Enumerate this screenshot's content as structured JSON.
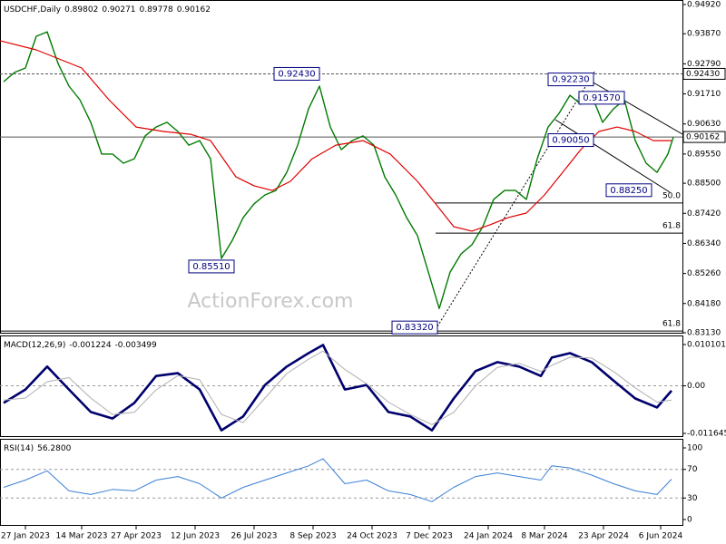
{
  "chart_data": [
    {
      "type": "line",
      "title": "USDCHF,Daily",
      "ohlc": [
        0.89802,
        0.90271,
        0.89778,
        0.90162
      ],
      "watermark": "ActionForex.com",
      "xlim": [
        0,
        376
      ],
      "ylim": [
        0.8313,
        0.9492
      ],
      "grid": false,
      "yticks": [
        {
          "value": 0.9492,
          "label": "0.94920"
        },
        {
          "value": 0.9387,
          "label": "0.93870"
        },
        {
          "value": 0.9279,
          "label": "0.92790"
        },
        {
          "value": 0.9171,
          "label": "0.91710"
        },
        {
          "value": 0.9063,
          "label": "0.90630"
        },
        {
          "value": 0.8955,
          "label": "0.89550"
        },
        {
          "value": 0.885,
          "label": "0.88500"
        },
        {
          "value": 0.8742,
          "label": "0.87420"
        },
        {
          "value": 0.8634,
          "label": "0.86340"
        },
        {
          "value": 0.8526,
          "label": "0.85260"
        },
        {
          "value": 0.8418,
          "label": "0.84180"
        },
        {
          "value": 0.8313,
          "label": "0.83130"
        }
      ],
      "series": [
        {
          "name": "Close",
          "color": "#007a00",
          "width": 1.4,
          "x": [
            2,
            8,
            14,
            20,
            26,
            32,
            38,
            44,
            50,
            56,
            62,
            68,
            74,
            80,
            86,
            92,
            98,
            104,
            110,
            116,
            122,
            128,
            134,
            140,
            146,
            152,
            158,
            164,
            170,
            176,
            182,
            188,
            194,
            200,
            206,
            212,
            218,
            224,
            230,
            236,
            242,
            248,
            254,
            260,
            266,
            272,
            278,
            284,
            290,
            296,
            302,
            308,
            314,
            320,
            326,
            332,
            338,
            344,
            350,
            356,
            362,
            368,
            371
          ],
          "values": [
            0.9215,
            0.9248,
            0.9264,
            0.9378,
            0.9394,
            0.928,
            0.9199,
            0.915,
            0.9069,
            0.8955,
            0.8955,
            0.8922,
            0.8938,
            0.902,
            0.9052,
            0.9069,
            0.9036,
            0.8987,
            0.9003,
            0.8938,
            0.858,
            0.8645,
            0.8727,
            0.8776,
            0.8808,
            0.8824,
            0.8889,
            0.8987,
            0.9117,
            0.9199,
            0.9052,
            0.8971,
            0.9003,
            0.902,
            0.8987,
            0.8873,
            0.8808,
            0.8727,
            0.8662,
            0.8531,
            0.84,
            0.8531,
            0.8596,
            0.8629,
            0.8694,
            0.8792,
            0.8824,
            0.8824,
            0.8792,
            0.8938,
            0.9052,
            0.9101,
            0.9166,
            0.9134,
            0.9166,
            0.9069,
            0.9117,
            0.915,
            0.9003,
            0.8922,
            0.8889,
            0.8955,
            0.9016
          ]
        },
        {
          "name": "MA",
          "color": "#e00000",
          "width": 1.2,
          "x": [
            0,
            20,
            45,
            60,
            75,
            90,
            105,
            116,
            130,
            140,
            150,
            160,
            172,
            185,
            200,
            215,
            230,
            240,
            250,
            260,
            270,
            280,
            290,
            300,
            310,
            320,
            330,
            340,
            350,
            360,
            370
          ],
          "values": [
            0.9362,
            0.9329,
            0.9264,
            0.915,
            0.9052,
            0.9036,
            0.9026,
            0.9003,
            0.8873,
            0.8841,
            0.8824,
            0.8857,
            0.8938,
            0.8987,
            0.9003,
            0.8955,
            0.8857,
            0.8776,
            0.8694,
            0.8678,
            0.8701,
            0.8727,
            0.8743,
            0.8808,
            0.8889,
            0.8971,
            0.9036,
            0.9052,
            0.9036,
            0.9003,
            0.9003
          ]
        }
      ],
      "annotations": [
        {
          "x": 176,
          "value": 0.9243,
          "label": "0.92430"
        },
        {
          "x": 129,
          "value": 0.8551,
          "label": "0.85510"
        },
        {
          "x": 241,
          "value": 0.8332,
          "label": "0.83320"
        },
        {
          "x": 327,
          "value": 0.9223,
          "label": "0.92230"
        },
        {
          "x": 344,
          "value": 0.9157,
          "label": "0.91570"
        },
        {
          "x": 327,
          "value": 0.9005,
          "label": "0.90050"
        },
        {
          "x": 359,
          "value": 0.8825,
          "label": "0.88250"
        }
      ],
      "hlines": [
        {
          "value": 0.9243,
          "label": "0.92430",
          "style": "dashed"
        },
        {
          "value": 0.90162,
          "label": "0.90162",
          "style": "solid"
        }
      ],
      "fib_levels": [
        {
          "x0": 240,
          "value": 0.8779,
          "label": "50.0"
        },
        {
          "x0": 240,
          "value": 0.8671,
          "label": "61.8"
        },
        {
          "x0": 0,
          "value": 0.8319,
          "label": "61.8"
        }
      ]
    },
    {
      "type": "line",
      "title": "MACD(12,26,9)",
      "readout": [
        -0.001224,
        -0.003499
      ],
      "xlim": [
        0,
        376
      ],
      "ylim": [
        -0.011645,
        0.010101
      ],
      "grid": true,
      "yticks": [
        0.010101,
        {
          "value": 0,
          "label": "0.00"
        },
        -0.011645
      ],
      "series": [
        {
          "name": "MACD",
          "color": "#00006e",
          "width": 2.6,
          "x": [
            2,
            14,
            26,
            38,
            50,
            62,
            74,
            86,
            98,
            110,
            122,
            134,
            146,
            158,
            170,
            178,
            190,
            202,
            214,
            226,
            238,
            250,
            262,
            274,
            286,
            298,
            304,
            314,
            326,
            338,
            350,
            362,
            370
          ],
          "values": [
            -0.0042,
            -0.0009,
            0.0047,
            -0.0009,
            -0.0064,
            -0.008,
            -0.0042,
            0.0024,
            0.0031,
            -0.0009,
            -0.0109,
            -0.0075,
            0.0002,
            0.0047,
            0.008,
            0.01,
            -0.0009,
            0.0002,
            -0.0064,
            -0.0075,
            -0.0109,
            -0.0031,
            0.0036,
            0.0058,
            0.0047,
            0.0024,
            0.0069,
            0.008,
            0.0058,
            0.0013,
            -0.0031,
            -0.0053,
            -0.0012
          ]
        },
        {
          "name": "Signal",
          "color": "#b0b0b0",
          "width": 1,
          "x": [
            2,
            14,
            26,
            38,
            50,
            62,
            74,
            86,
            98,
            110,
            122,
            134,
            146,
            158,
            170,
            178,
            190,
            202,
            214,
            226,
            238,
            250,
            262,
            274,
            286,
            298,
            304,
            314,
            326,
            338,
            350,
            362,
            370
          ],
          "values": [
            -0.0035,
            -0.003,
            0.001,
            0.002,
            -0.003,
            -0.007,
            -0.0065,
            -0.001,
            0.0025,
            0.0015,
            -0.007,
            -0.009,
            -0.003,
            0.003,
            0.0065,
            0.0085,
            0.004,
            0.0005,
            -0.004,
            -0.007,
            -0.0095,
            -0.0065,
            0.0,
            0.0045,
            0.0055,
            0.0035,
            0.005,
            0.007,
            0.0068,
            0.0035,
            -0.0005,
            -0.004,
            -0.0035
          ]
        }
      ]
    },
    {
      "type": "line",
      "title": "RSI(14)",
      "readout": [
        {
          "value": 56.28,
          "label": "56.2800"
        }
      ],
      "xlim": [
        0,
        376
      ],
      "ylim": [
        0,
        100
      ],
      "grid": true,
      "yticks": [
        100,
        70,
        30,
        0
      ],
      "xticks": [
        {
          "value": 14,
          "label": "27 Jan 2023"
        },
        {
          "value": 45,
          "label": "14 Mar 2023"
        },
        {
          "value": 75,
          "label": "27 Apr 2023"
        },
        {
          "value": 107.5,
          "label": "12 Jun 2023"
        },
        {
          "value": 140,
          "label": "26 Jul 2023"
        },
        {
          "value": 172.5,
          "label": "8 Sep 2023"
        },
        {
          "value": 205,
          "label": "24 Oct 2023"
        },
        {
          "value": 236.5,
          "label": "7 Dec 2023"
        },
        {
          "value": 269,
          "label": "24 Jan 2024"
        },
        {
          "value": 300,
          "label": "8 Mar 2024"
        },
        {
          "value": 332.5,
          "label": "23 Apr 2024"
        },
        {
          "value": 364,
          "label": "6 Jun 2024"
        }
      ],
      "series": [
        {
          "name": "RSI",
          "color": "#3a7fd5",
          "width": 1,
          "x": [
            2,
            14,
            26,
            38,
            50,
            62,
            74,
            86,
            98,
            110,
            122,
            134,
            146,
            158,
            170,
            178,
            190,
            202,
            214,
            226,
            238,
            250,
            262,
            274,
            286,
            298,
            304,
            314,
            326,
            338,
            350,
            362,
            370
          ],
          "values": [
            45,
            55,
            68,
            40,
            35,
            42,
            40,
            55,
            60,
            50,
            30,
            45,
            55,
            65,
            75,
            85,
            50,
            55,
            40,
            35,
            25,
            45,
            60,
            65,
            60,
            55,
            75,
            72,
            62,
            50,
            40,
            35,
            56.28
          ]
        }
      ]
    }
  ]
}
